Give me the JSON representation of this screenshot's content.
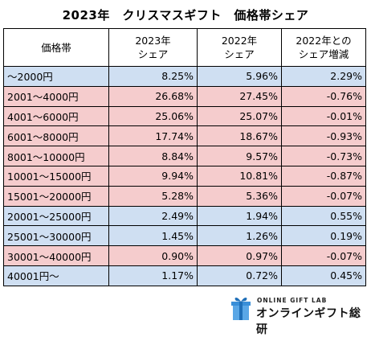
{
  "title": "2023年　クリスマスギフト　価格帯シェア",
  "table": {
    "headers": [
      [
        "価格帯"
      ],
      [
        "2023年",
        "シェア"
      ],
      [
        "2022年",
        "シェア"
      ],
      [
        "2022年との",
        "シェア増減"
      ]
    ],
    "rows": [
      {
        "band": "〜2000円",
        "y2023": "8.25%",
        "y2022": "5.96%",
        "diff": "2.29%",
        "tone": "blue"
      },
      {
        "band": "2001〜4000円",
        "y2023": "26.68%",
        "y2022": "27.45%",
        "diff": "-0.76%",
        "tone": "pink"
      },
      {
        "band": "4001〜6000円",
        "y2023": "25.06%",
        "y2022": "25.07%",
        "diff": "-0.01%",
        "tone": "pink"
      },
      {
        "band": "6001〜8000円",
        "y2023": "17.74%",
        "y2022": "18.67%",
        "diff": "-0.93%",
        "tone": "pink"
      },
      {
        "band": "8001〜10000円",
        "y2023": "8.84%",
        "y2022": "9.57%",
        "diff": "-0.73%",
        "tone": "pink"
      },
      {
        "band": "10001〜15000円",
        "y2023": "9.94%",
        "y2022": "10.81%",
        "diff": "-0.87%",
        "tone": "pink"
      },
      {
        "band": "15001〜20000円",
        "y2023": "5.28%",
        "y2022": "5.36%",
        "diff": "-0.07%",
        "tone": "pink"
      },
      {
        "band": "20001〜25000円",
        "y2023": "2.49%",
        "y2022": "1.94%",
        "diff": "0.55%",
        "tone": "blue"
      },
      {
        "band": "25001〜30000円",
        "y2023": "1.45%",
        "y2022": "1.26%",
        "diff": "0.19%",
        "tone": "blue"
      },
      {
        "band": "30001〜40000円",
        "y2023": "0.90%",
        "y2022": "0.97%",
        "diff": "-0.07%",
        "tone": "pink"
      },
      {
        "band": "40001円〜",
        "y2023": "1.17%",
        "y2022": "0.72%",
        "diff": "0.45%",
        "tone": "blue"
      }
    ]
  },
  "colors": {
    "increase_row": "#cfdff2",
    "decrease_row": "#f5cccd",
    "logo_accent": "#3a8fd8"
  },
  "logo": {
    "small": "ONLINE GIFT LAB",
    "big": "オンラインギフト総研",
    "icon": "gift-box-icon"
  }
}
